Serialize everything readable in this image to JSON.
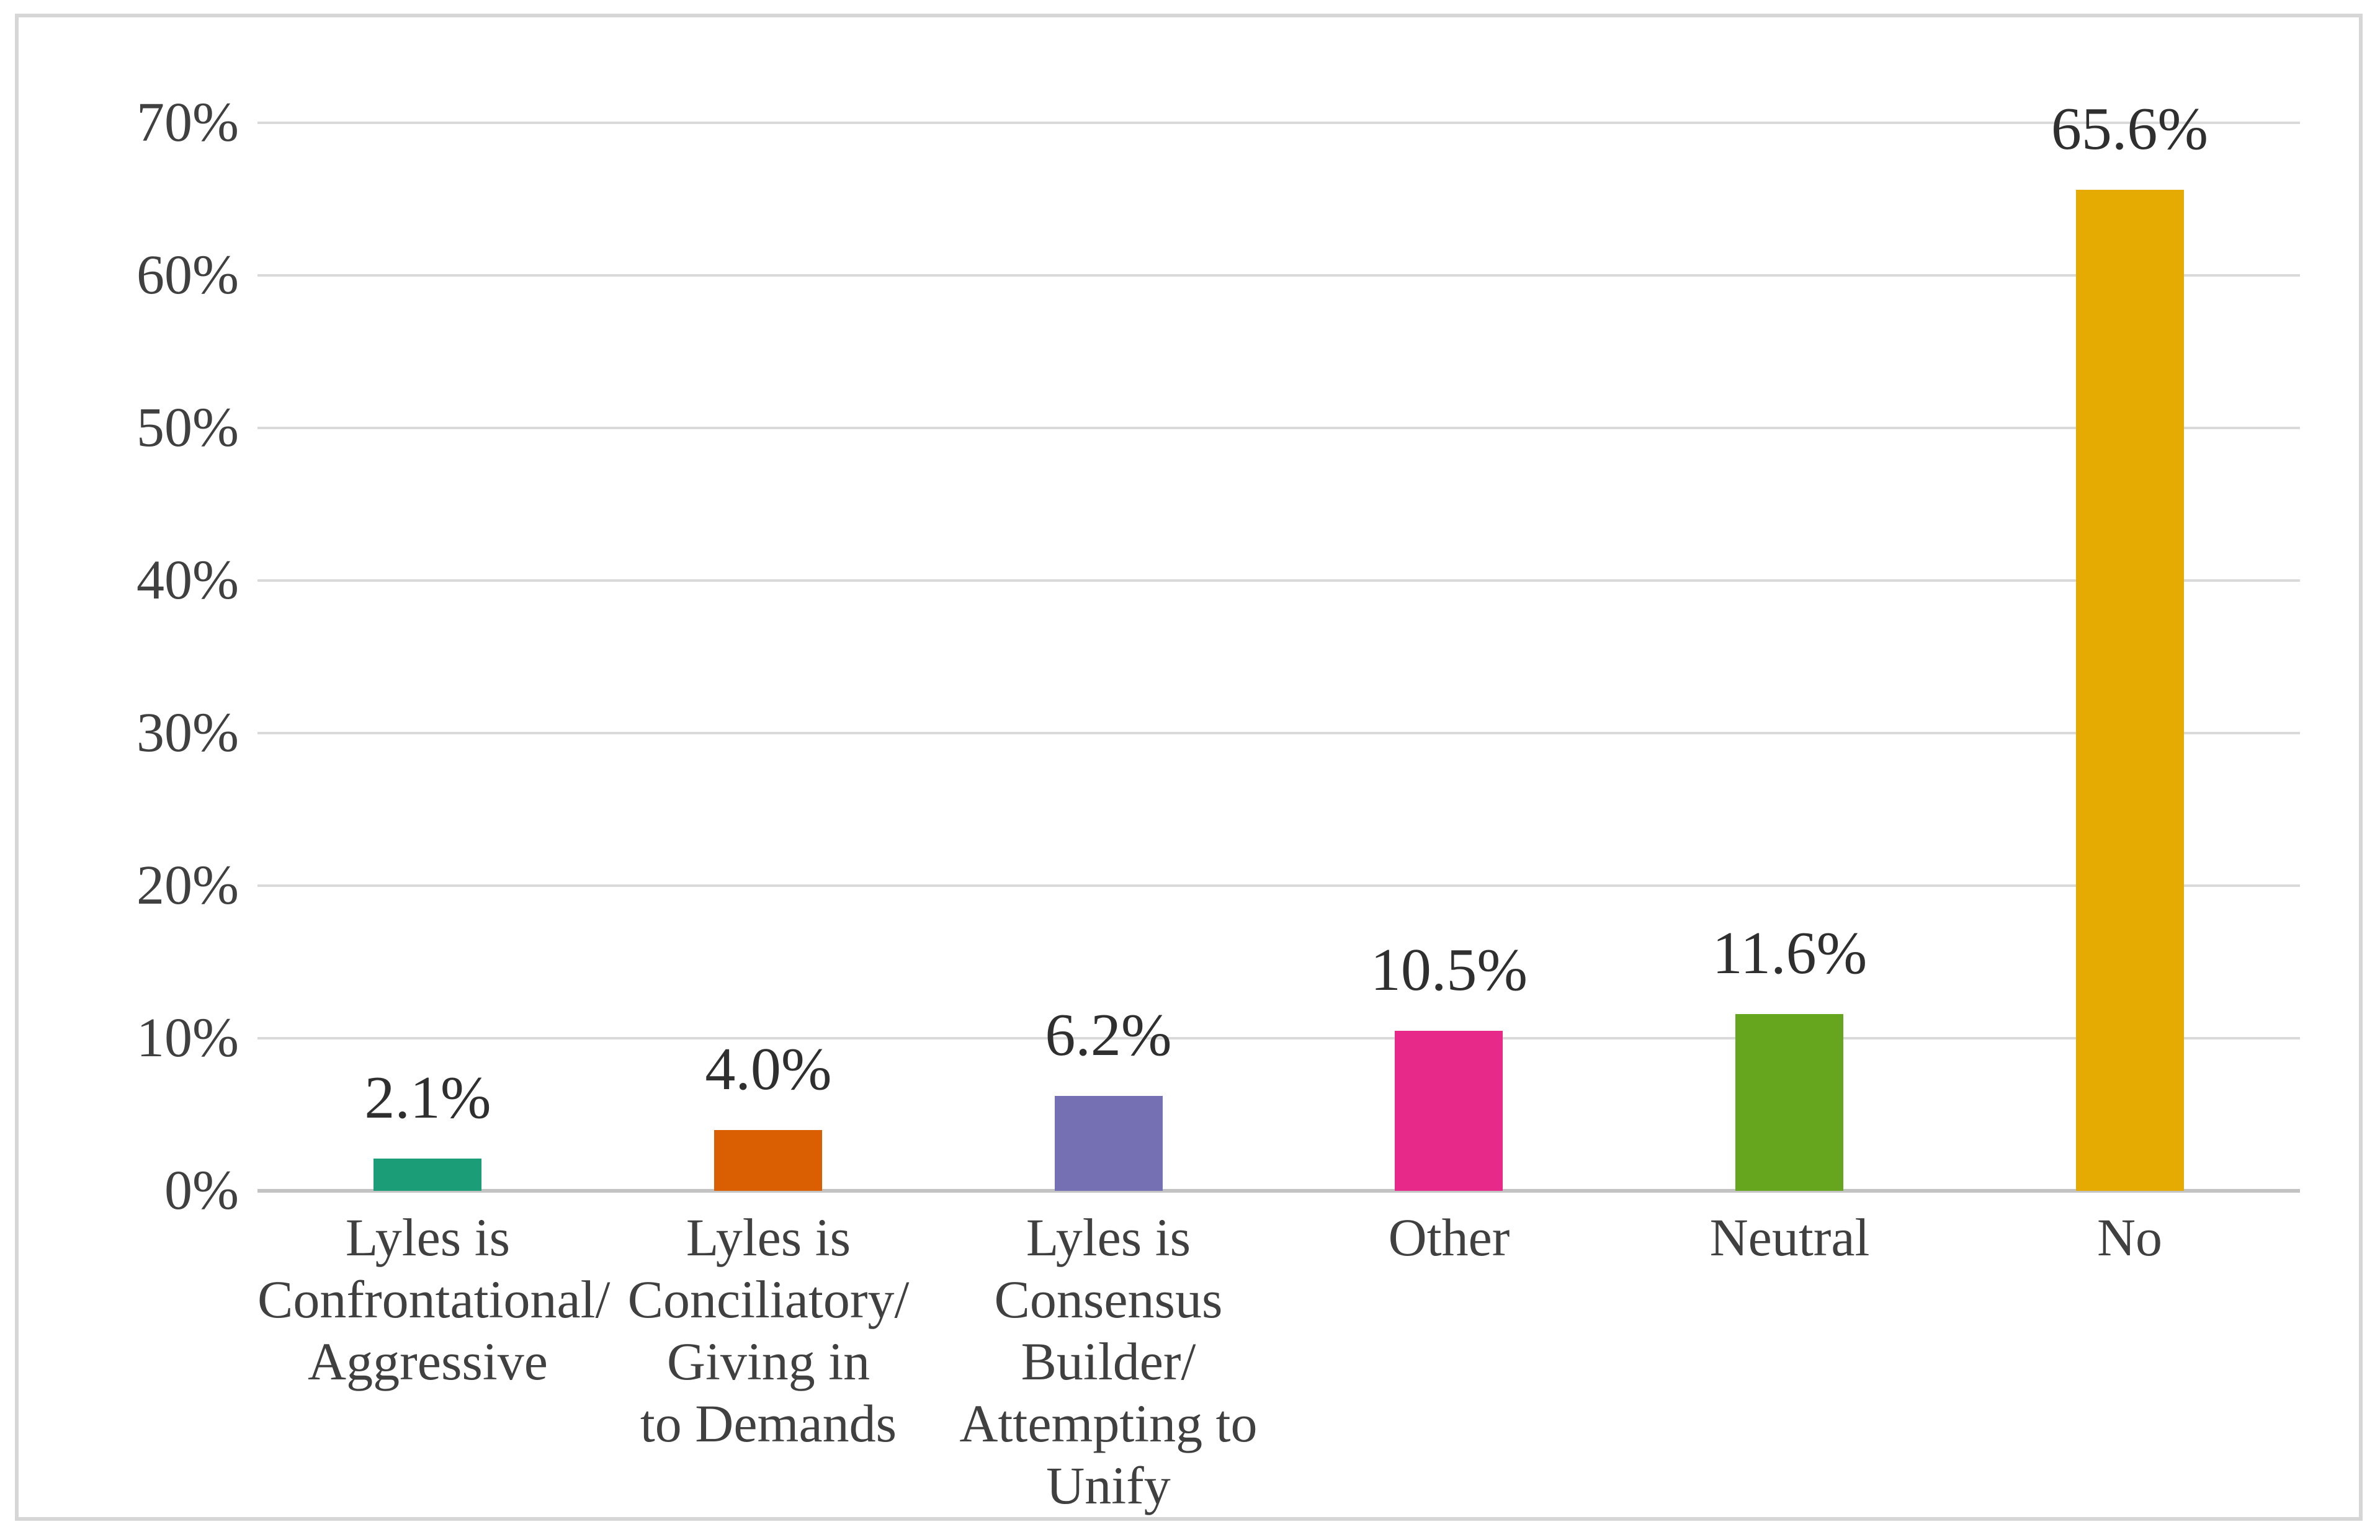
{
  "chart_data": {
    "type": "bar",
    "title": "",
    "xlabel": "",
    "ylabel": "",
    "categories": [
      "Lyles is Confrontational/Aggressive",
      "Lyles is Conciliatory/Giving in to Demands",
      "Lyles is Consensus Builder/Attempting to Unify",
      "Other",
      "Neutral",
      "No"
    ],
    "category_label_lines": [
      [
        "Lyles is",
        "Confrontational/",
        "Aggressive"
      ],
      [
        "Lyles is",
        "Conciliatory/",
        "Giving in",
        "to Demands"
      ],
      [
        "Lyles is",
        "Consensus",
        "Builder/",
        "Attempting to",
        "Unify"
      ],
      [
        "Other"
      ],
      [
        "Neutral"
      ],
      [
        "No"
      ]
    ],
    "values": [
      2.1,
      4.0,
      6.2,
      10.5,
      11.6,
      65.6
    ],
    "value_labels": [
      "2.1%",
      "4.0%",
      "6.2%",
      "10.5%",
      "11.6%",
      "65.6%"
    ],
    "bar_colors": [
      "#1B9E77",
      "#D95F02",
      "#7570B3",
      "#E7298A",
      "#66A61E",
      "#E6AB02"
    ],
    "ylim": [
      0,
      70
    ],
    "ytick_step": 10,
    "ytick_labels_top_down": [
      "70%",
      "60%",
      "50%",
      "40%",
      "30%",
      "20%",
      "10%",
      "0%"
    ],
    "grid": true,
    "legend": false,
    "gridline_color": "#D9D9D9",
    "axis_line_color": "#C3C3C3",
    "text_color": "#404040",
    "value_label_color": "#2f2f2f",
    "frame_border_color": "#D6D6D6",
    "background_color": "#ffffff"
  }
}
